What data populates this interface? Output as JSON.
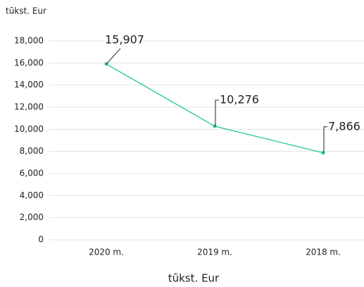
{
  "chart_data": {
    "type": "line",
    "ylabel": "tūkst. Eur",
    "xlabel": "tūkst. Eur",
    "categories": [
      "2020 m.",
      "2019 m.",
      "2018 m."
    ],
    "series": [
      {
        "name": "tūkst. Eur",
        "color": "#1fc79a",
        "values": [
          15907,
          10276,
          7866
        ],
        "value_labels": [
          "15,907",
          "10,276",
          "7,866"
        ]
      }
    ],
    "ylim": [
      0,
      18000
    ],
    "yticks": [
      {
        "value": 0,
        "label": "0"
      },
      {
        "value": 2000,
        "label": "2,000"
      },
      {
        "value": 4000,
        "label": "4,000"
      },
      {
        "value": 6000,
        "label": "6,000"
      },
      {
        "value": 8000,
        "label": "8,000"
      },
      {
        "value": 10000,
        "label": "10,000"
      },
      {
        "value": 12000,
        "label": "12,000"
      },
      {
        "value": 14000,
        "label": "14,000"
      },
      {
        "value": 16000,
        "label": "16,000"
      },
      {
        "value": 18000,
        "label": "18,000"
      }
    ],
    "grid": true
  }
}
